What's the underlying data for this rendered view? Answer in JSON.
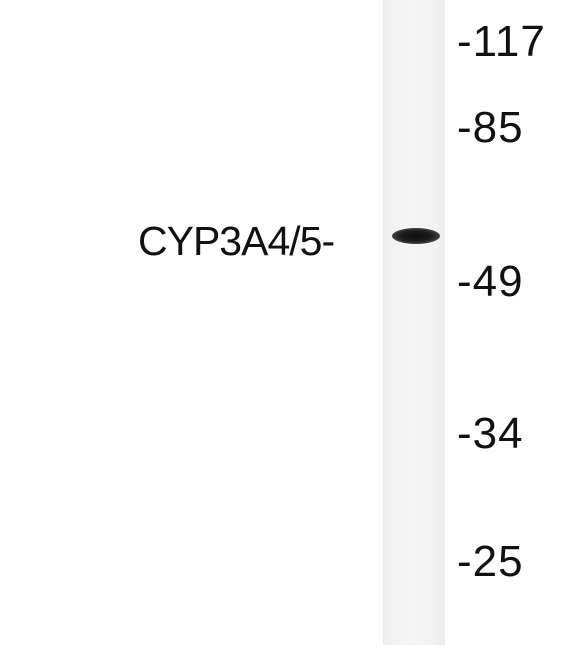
{
  "band": {
    "label": "CYP3A4/5-"
  },
  "markers": [
    {
      "text": "-117"
    },
    {
      "text": "-85"
    },
    {
      "text": "-49"
    },
    {
      "text": "-34"
    },
    {
      "text": "-25"
    }
  ]
}
